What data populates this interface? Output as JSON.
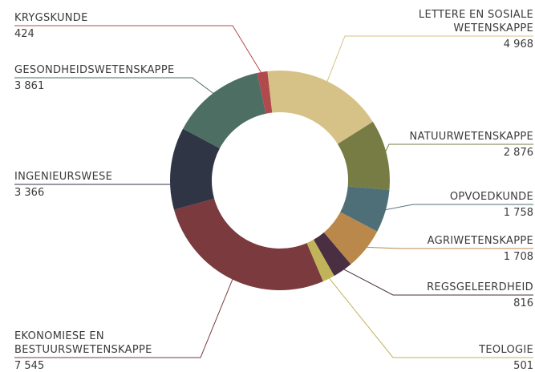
{
  "chart_data": {
    "type": "donut",
    "categories": [
      "KRYGSKUNDE",
      "LETTERE EN SOSIALE WETENSKAPPE",
      "NATUURWETENSKAPPE",
      "OPVOEDKUNDE",
      "AGRIWETENSKAPPE",
      "REGSGELEERDHEID",
      "TEOLOGIE",
      "EKONOMIESE EN BESTUURSWETENSKAPPE",
      "INGENIEURSWESE",
      "GESONDHEIDSWETENSKAPPE"
    ],
    "values": [
      424,
      4968,
      2876,
      1758,
      1708,
      816,
      501,
      7545,
      3366,
      3861
    ],
    "value_labels": [
      "424",
      "4 968",
      "2 876",
      "1 758",
      "1 708",
      "816",
      "501",
      "7 545",
      "3 366",
      "3 861"
    ],
    "colors": [
      "#b04a4d",
      "#d6c287",
      "#767c43",
      "#4f6f78",
      "#b9884a",
      "#4a2e42",
      "#c1b35a",
      "#7a3a3e",
      "#2f3545",
      "#4c6e63"
    ]
  }
}
